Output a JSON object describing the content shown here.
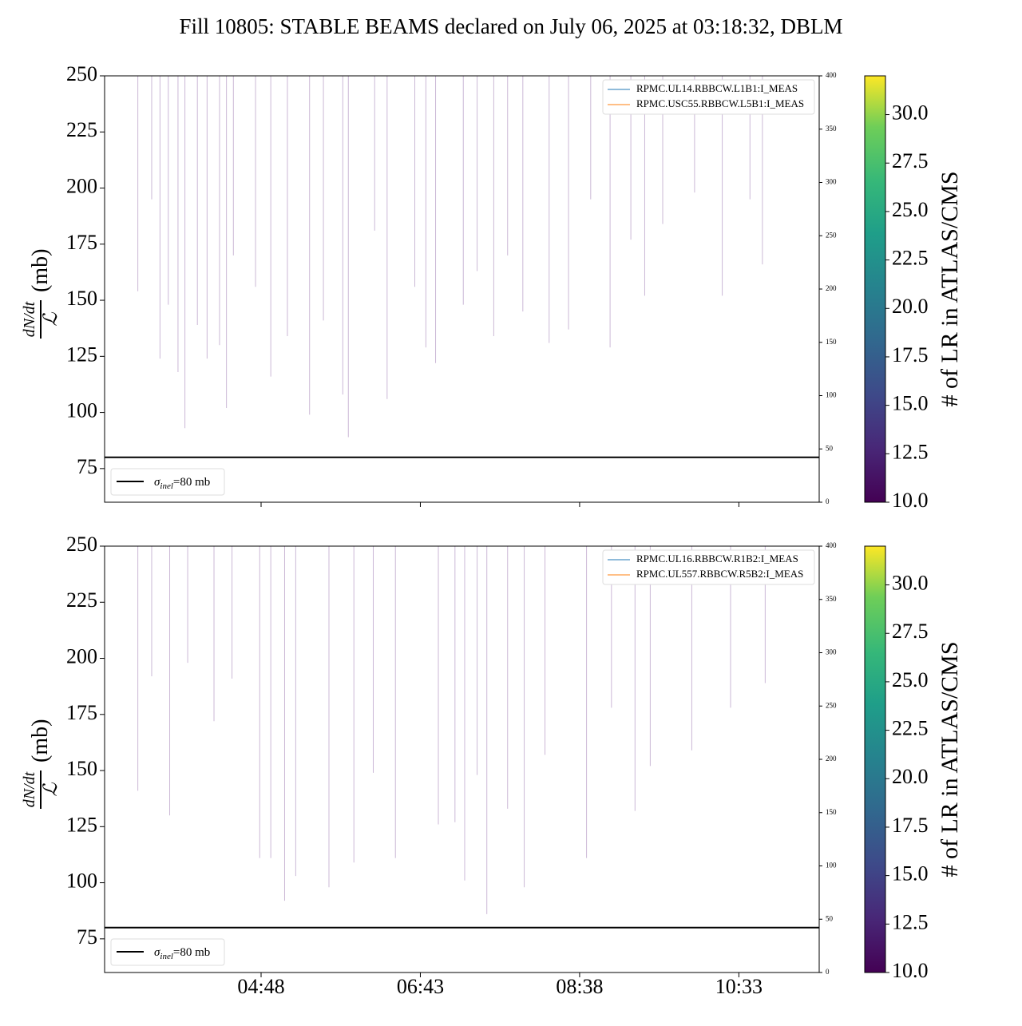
{
  "title": "Fill 10805: STABLE BEAMS declared on July 06, 2025 at 03:18:32, DBLM",
  "chart_data": [
    {
      "type": "line",
      "ylabel": {
        "numerator": "dN/dt",
        "denominator": "ℒ",
        "unit": "(mb)"
      },
      "xlim": [
        175,
        691
      ],
      "xticks": [
        {
          "value": 288,
          "label": "04:48"
        },
        {
          "value": 403,
          "label": "06:43"
        },
        {
          "value": 518,
          "label": "08:38"
        },
        {
          "value": 633,
          "label": "10:33"
        }
      ],
      "show_xtick_labels": false,
      "ylim": [
        60,
        250
      ],
      "yticks": [
        75,
        100,
        125,
        150,
        175,
        200,
        225,
        250
      ],
      "y2lim": [
        0,
        400
      ],
      "y2ticks": [
        0,
        50,
        100,
        150,
        200,
        250,
        300,
        350,
        400
      ],
      "hline": {
        "value": 80,
        "color": "#000000",
        "label": [
          "σ",
          "inel",
          "=80 mb"
        ]
      },
      "spikes": {
        "color": "#cbb8d6",
        "x": [
          199,
          209,
          215,
          221,
          228,
          233,
          242,
          249,
          258,
          263,
          268,
          284,
          295,
          307,
          323,
          333,
          347,
          351,
          370,
          379,
          399,
          407,
          414,
          434,
          444,
          456,
          466,
          477,
          496,
          510,
          526,
          540,
          555,
          565,
          578,
          601,
          621,
          641,
          650
        ],
        "values": [
          154,
          195,
          124,
          148,
          118,
          93,
          139,
          124,
          130,
          102,
          170,
          156,
          116,
          134,
          99,
          141,
          108,
          89,
          181,
          106,
          156,
          129,
          122,
          148,
          163,
          134,
          170,
          145,
          131,
          137,
          195,
          129,
          177,
          152,
          184,
          198,
          152,
          195,
          166
        ]
      },
      "series": [
        {
          "name": "RPMC.UL14.RBBCW.L1B1:I_MEAS",
          "color": "#1f77b4",
          "axis": "y2",
          "x": [
            199,
            652
          ],
          "values": [
            0,
            0
          ]
        },
        {
          "name": "RPMC.USC55.RBBCW.L5B1:I_MEAS",
          "color": "#ff7f0e",
          "axis": "y2",
          "x": [
            199,
            652
          ],
          "values": [
            0,
            0
          ]
        }
      ],
      "colorbar": {
        "label": "# of LR in ATLAS/CMS",
        "lim": [
          10,
          32
        ],
        "colormap": "viridis",
        "ticks": [
          {
            "value": 10,
            "label": "10.0"
          },
          {
            "value": 12.5,
            "label": "12.5"
          },
          {
            "value": 15,
            "label": "15.0"
          },
          {
            "value": 17.5,
            "label": "17.5"
          },
          {
            "value": 20,
            "label": "20.0"
          },
          {
            "value": 22.5,
            "label": "22.5"
          },
          {
            "value": 25,
            "label": "25.0"
          },
          {
            "value": 27.5,
            "label": "27.5"
          },
          {
            "value": 30,
            "label": "30.0"
          }
        ]
      }
    },
    {
      "type": "line",
      "ylabel": {
        "numerator": "dN/dt",
        "denominator": "ℒ",
        "unit": "(mb)"
      },
      "xlim": [
        175,
        691
      ],
      "xticks": [
        {
          "value": 288,
          "label": "04:48"
        },
        {
          "value": 403,
          "label": "06:43"
        },
        {
          "value": 518,
          "label": "08:38"
        },
        {
          "value": 633,
          "label": "10:33"
        }
      ],
      "show_xtick_labels": true,
      "ylim": [
        60,
        250
      ],
      "yticks": [
        75,
        100,
        125,
        150,
        175,
        200,
        225,
        250
      ],
      "y2lim": [
        0,
        400
      ],
      "y2ticks": [
        0,
        50,
        100,
        150,
        200,
        250,
        300,
        350,
        400
      ],
      "hline": {
        "value": 80,
        "color": "#000000",
        "label": [
          "σ",
          "inel",
          "=80 mb"
        ]
      },
      "spikes": {
        "color": "#cbb8d6",
        "x": [
          199,
          209,
          222,
          235,
          254,
          267,
          287,
          295,
          305,
          313,
          337,
          355,
          369,
          385,
          416,
          428,
          435,
          444,
          451,
          466,
          478,
          493,
          523,
          541,
          558,
          569,
          599,
          627,
          652
        ],
        "values": [
          141,
          192,
          130,
          198,
          172,
          191,
          111,
          111,
          92,
          103,
          98,
          109,
          149,
          111,
          126,
          127,
          101,
          148,
          86,
          133,
          98,
          157,
          111,
          178,
          132,
          152,
          159,
          178,
          189
        ]
      },
      "series": [
        {
          "name": "RPMC.UL16.RBBCW.R1B2:I_MEAS",
          "color": "#1f77b4",
          "axis": "y2",
          "x": [
            199,
            652
          ],
          "values": [
            0,
            0
          ]
        },
        {
          "name": "RPMC.UL557.RBBCW.R5B2:I_MEAS",
          "color": "#ff7f0e",
          "axis": "y2",
          "x": [
            199,
            652
          ],
          "values": [
            0,
            0
          ]
        }
      ],
      "colorbar": {
        "label": "# of LR in ATLAS/CMS",
        "lim": [
          10,
          32
        ],
        "colormap": "viridis",
        "ticks": [
          {
            "value": 10,
            "label": "10.0"
          },
          {
            "value": 12.5,
            "label": "12.5"
          },
          {
            "value": 15,
            "label": "15.0"
          },
          {
            "value": 17.5,
            "label": "17.5"
          },
          {
            "value": 20,
            "label": "20.0"
          },
          {
            "value": 22.5,
            "label": "22.5"
          },
          {
            "value": 25,
            "label": "25.0"
          },
          {
            "value": 27.5,
            "label": "27.5"
          },
          {
            "value": 30,
            "label": "30.0"
          }
        ]
      }
    }
  ]
}
